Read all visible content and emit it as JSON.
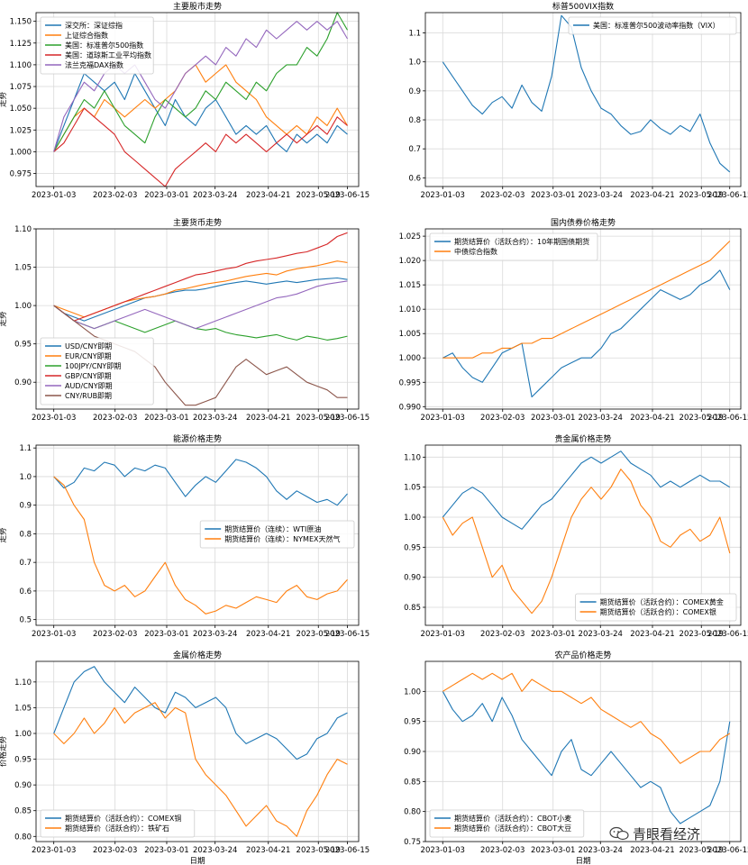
{
  "watermark": {
    "text": "青眼看经济",
    "icon": "wechat-icon"
  },
  "x_ticks": [
    "2023-01-03",
    "2023-02-03",
    "2023-03-01",
    "2023-03-24",
    "2023-04-21",
    "2023-05-19",
    "2023-06-15"
  ],
  "chart_data": [
    {
      "type": "line",
      "title": "主要股市走势",
      "ylabel": "走势",
      "xlabel": "",
      "legend_position": "top-left",
      "ylim": [
        0.96,
        1.16
      ],
      "yticks": [
        0.975,
        1.0,
        1.025,
        1.05,
        1.075,
        1.1,
        1.125,
        1.15
      ],
      "ytick_labels": [
        "0.975",
        "1.000",
        "1.025",
        "1.050",
        "1.075",
        "1.100",
        "1.125",
        "1.150"
      ],
      "grid": true,
      "series": [
        {
          "name": "深交所：深证综指",
          "color": "#1f77b4",
          "values": [
            1.0,
            1.03,
            1.06,
            1.09,
            1.08,
            1.07,
            1.08,
            1.06,
            1.09,
            1.07,
            1.05,
            1.03,
            1.06,
            1.04,
            1.03,
            1.05,
            1.06,
            1.04,
            1.02,
            1.03,
            1.02,
            1.03,
            1.01,
            1.0,
            1.02,
            1.01,
            1.02,
            1.01,
            1.03,
            1.02
          ]
        },
        {
          "name": "上证综合指数",
          "color": "#ff7f0e",
          "values": [
            1.0,
            1.02,
            1.04,
            1.05,
            1.04,
            1.06,
            1.05,
            1.04,
            1.05,
            1.06,
            1.05,
            1.06,
            1.07,
            1.09,
            1.1,
            1.08,
            1.09,
            1.1,
            1.08,
            1.07,
            1.06,
            1.04,
            1.03,
            1.02,
            1.03,
            1.02,
            1.04,
            1.03,
            1.05,
            1.03
          ]
        },
        {
          "name": "美国：标准普尔500指数",
          "color": "#2ca02c",
          "values": [
            1.0,
            1.02,
            1.04,
            1.06,
            1.05,
            1.07,
            1.05,
            1.03,
            1.02,
            1.01,
            1.04,
            1.06,
            1.05,
            1.04,
            1.05,
            1.07,
            1.06,
            1.08,
            1.07,
            1.06,
            1.08,
            1.07,
            1.09,
            1.1,
            1.1,
            1.12,
            1.11,
            1.13,
            1.16,
            1.14
          ]
        },
        {
          "name": "美国：道琼斯工业平均指数",
          "color": "#d62728",
          "values": [
            1.0,
            1.01,
            1.03,
            1.05,
            1.04,
            1.03,
            1.02,
            1.0,
            0.99,
            0.98,
            0.97,
            0.96,
            0.98,
            0.99,
            1.0,
            1.01,
            1.0,
            1.02,
            1.01,
            1.02,
            1.01,
            1.0,
            1.01,
            1.02,
            1.01,
            1.02,
            1.03,
            1.02,
            1.04,
            1.03
          ]
        },
        {
          "name": "法兰克福DAX指数",
          "color": "#9467bd",
          "values": [
            1.0,
            1.04,
            1.06,
            1.08,
            1.07,
            1.09,
            1.1,
            1.09,
            1.1,
            1.08,
            1.06,
            1.05,
            1.07,
            1.09,
            1.1,
            1.11,
            1.1,
            1.12,
            1.11,
            1.13,
            1.12,
            1.14,
            1.13,
            1.14,
            1.15,
            1.14,
            1.15,
            1.14,
            1.15,
            1.13
          ]
        }
      ]
    },
    {
      "type": "line",
      "title": "标普500VIX指数",
      "ylabel": "",
      "xlabel": "",
      "legend_position": "top-right",
      "ylim": [
        0.57,
        1.17
      ],
      "yticks": [
        0.6,
        0.7,
        0.8,
        0.9,
        1.0,
        1.1
      ],
      "ytick_labels": [
        "0.6",
        "0.7",
        "0.8",
        "0.9",
        "1.0",
        "1.1"
      ],
      "grid": true,
      "series": [
        {
          "name": "美国：标准普尔500波动率指数（VIX）",
          "color": "#1f77b4",
          "values": [
            1.0,
            0.95,
            0.9,
            0.85,
            0.82,
            0.86,
            0.88,
            0.84,
            0.92,
            0.86,
            0.83,
            0.95,
            1.16,
            1.12,
            0.98,
            0.9,
            0.84,
            0.82,
            0.78,
            0.75,
            0.76,
            0.8,
            0.77,
            0.75,
            0.78,
            0.76,
            0.82,
            0.72,
            0.65,
            0.62
          ]
        }
      ]
    },
    {
      "type": "line",
      "title": "主要货币走势",
      "ylabel": "走势",
      "xlabel": "",
      "legend_position": "lower-left",
      "ylim": [
        0.865,
        1.1
      ],
      "yticks": [
        0.9,
        0.95,
        1.0,
        1.05,
        1.1
      ],
      "ytick_labels": [
        "0.90",
        "0.95",
        "1.00",
        "1.05",
        "1.10"
      ],
      "grid": true,
      "series": [
        {
          "name": "USD/CNY即期",
          "color": "#1f77b4",
          "values": [
            1.0,
            0.99,
            0.985,
            0.98,
            0.985,
            0.99,
            0.995,
            1.0,
            1.005,
            1.01,
            1.012,
            1.015,
            1.018,
            1.02,
            1.02,
            1.022,
            1.025,
            1.028,
            1.03,
            1.032,
            1.03,
            1.028,
            1.03,
            1.032,
            1.03,
            1.032,
            1.034,
            1.035,
            1.036,
            1.034
          ]
        },
        {
          "name": "EUR/CNY即期",
          "color": "#ff7f0e",
          "values": [
            1.0,
            0.995,
            0.99,
            0.985,
            0.99,
            0.995,
            1.0,
            1.005,
            1.008,
            1.01,
            1.012,
            1.015,
            1.02,
            1.022,
            1.025,
            1.028,
            1.03,
            1.032,
            1.035,
            1.038,
            1.04,
            1.042,
            1.04,
            1.045,
            1.048,
            1.05,
            1.052,
            1.055,
            1.058,
            1.056
          ]
        },
        {
          "name": "100JPY/CNY即期",
          "color": "#2ca02c",
          "values": [
            1.0,
            0.99,
            0.98,
            0.975,
            0.97,
            0.975,
            0.98,
            0.975,
            0.97,
            0.965,
            0.97,
            0.975,
            0.98,
            0.975,
            0.97,
            0.968,
            0.97,
            0.965,
            0.962,
            0.96,
            0.958,
            0.96,
            0.962,
            0.958,
            0.955,
            0.96,
            0.958,
            0.955,
            0.957,
            0.96
          ]
        },
        {
          "name": "GBP/CNY即期",
          "color": "#d62728",
          "values": [
            1.0,
            0.99,
            0.98,
            0.985,
            0.99,
            0.995,
            1.0,
            1.005,
            1.01,
            1.015,
            1.02,
            1.025,
            1.03,
            1.035,
            1.04,
            1.042,
            1.045,
            1.048,
            1.05,
            1.055,
            1.058,
            1.06,
            1.062,
            1.065,
            1.068,
            1.07,
            1.075,
            1.08,
            1.09,
            1.095
          ]
        },
        {
          "name": "AUD/CNY即期",
          "color": "#9467bd",
          "values": [
            1.0,
            0.99,
            0.98,
            0.975,
            0.97,
            0.975,
            0.98,
            0.985,
            0.99,
            0.995,
            0.99,
            0.985,
            0.98,
            0.975,
            0.97,
            0.975,
            0.98,
            0.985,
            0.99,
            0.995,
            1.0,
            1.005,
            1.01,
            1.012,
            1.015,
            1.02,
            1.025,
            1.028,
            1.03,
            1.032
          ]
        },
        {
          "name": "CNY/RUB即期",
          "color": "#8c564b",
          "values": [
            1.0,
            0.99,
            0.98,
            0.97,
            0.96,
            0.955,
            0.95,
            0.945,
            0.94,
            0.93,
            0.92,
            0.9,
            0.885,
            0.87,
            0.87,
            0.875,
            0.88,
            0.9,
            0.92,
            0.93,
            0.92,
            0.91,
            0.915,
            0.92,
            0.91,
            0.9,
            0.895,
            0.89,
            0.88,
            0.88
          ]
        }
      ]
    },
    {
      "type": "line",
      "title": "国内债券价格走势",
      "ylabel": "",
      "xlabel": "",
      "legend_position": "top-left",
      "ylim": [
        0.9895,
        1.0265
      ],
      "yticks": [
        0.99,
        0.995,
        1.0,
        1.005,
        1.01,
        1.015,
        1.02,
        1.025
      ],
      "ytick_labels": [
        "0.990",
        "0.995",
        "1.000",
        "1.005",
        "1.010",
        "1.015",
        "1.020",
        "1.025"
      ],
      "grid": true,
      "series": [
        {
          "name": "期货结算价（活跃合约）：10年期国债期货",
          "color": "#1f77b4",
          "values": [
            1.0,
            1.001,
            0.998,
            0.996,
            0.995,
            0.998,
            1.001,
            1.002,
            1.003,
            0.992,
            0.994,
            0.996,
            0.998,
            0.999,
            1.0,
            1.0,
            1.002,
            1.005,
            1.006,
            1.008,
            1.01,
            1.012,
            1.014,
            1.013,
            1.012,
            1.013,
            1.015,
            1.016,
            1.018,
            1.014
          ]
        },
        {
          "name": "中债综合指数",
          "color": "#ff7f0e",
          "values": [
            1.0,
            1.0,
            1.0,
            1.0,
            1.001,
            1.001,
            1.002,
            1.002,
            1.003,
            1.003,
            1.004,
            1.004,
            1.005,
            1.006,
            1.007,
            1.008,
            1.009,
            1.01,
            1.011,
            1.012,
            1.013,
            1.014,
            1.015,
            1.016,
            1.017,
            1.018,
            1.019,
            1.02,
            1.022,
            1.024
          ]
        }
      ]
    },
    {
      "type": "line",
      "title": "能源价格走势",
      "ylabel": "走势",
      "xlabel": "",
      "legend_position": "center-right",
      "ylim": [
        0.48,
        1.11
      ],
      "yticks": [
        0.5,
        0.6,
        0.7,
        0.8,
        0.9,
        1.0,
        1.1
      ],
      "ytick_labels": [
        "0.5",
        "0.6",
        "0.7",
        "0.8",
        "0.9",
        "1.0",
        "1.1"
      ],
      "grid": true,
      "series": [
        {
          "name": "期货结算价（连续）：WTI原油",
          "color": "#1f77b4",
          "values": [
            1.0,
            0.96,
            0.98,
            1.03,
            1.02,
            1.05,
            1.04,
            1.0,
            1.03,
            1.02,
            1.04,
            1.03,
            0.98,
            0.93,
            0.97,
            1.0,
            0.98,
            1.02,
            1.06,
            1.05,
            1.03,
            1.0,
            0.95,
            0.92,
            0.95,
            0.93,
            0.91,
            0.92,
            0.9,
            0.94
          ]
        },
        {
          "name": "期货结算价（连续）：NYMEX天然气",
          "color": "#ff7f0e",
          "values": [
            1.0,
            0.97,
            0.9,
            0.85,
            0.7,
            0.62,
            0.6,
            0.62,
            0.58,
            0.6,
            0.65,
            0.7,
            0.62,
            0.57,
            0.55,
            0.52,
            0.53,
            0.55,
            0.54,
            0.56,
            0.58,
            0.57,
            0.56,
            0.6,
            0.62,
            0.58,
            0.57,
            0.59,
            0.6,
            0.64
          ]
        }
      ]
    },
    {
      "type": "line",
      "title": "贵金属价格走势",
      "ylabel": "",
      "xlabel": "",
      "legend_position": "lower-right",
      "ylim": [
        0.82,
        1.12
      ],
      "yticks": [
        0.85,
        0.9,
        0.95,
        1.0,
        1.05,
        1.1
      ],
      "ytick_labels": [
        "0.85",
        "0.90",
        "0.95",
        "1.00",
        "1.05",
        "1.10"
      ],
      "grid": true,
      "series": [
        {
          "name": "期货结算价（活跃合约）：COMEX黄金",
          "color": "#1f77b4",
          "values": [
            1.0,
            1.02,
            1.04,
            1.05,
            1.04,
            1.02,
            1.0,
            0.99,
            0.98,
            1.0,
            1.02,
            1.03,
            1.05,
            1.07,
            1.09,
            1.1,
            1.09,
            1.1,
            1.11,
            1.09,
            1.08,
            1.07,
            1.05,
            1.06,
            1.05,
            1.06,
            1.07,
            1.06,
            1.06,
            1.05
          ]
        },
        {
          "name": "期货结算价（活跃合约）：COMEX银",
          "color": "#ff7f0e",
          "values": [
            1.0,
            0.97,
            0.99,
            1.0,
            0.95,
            0.9,
            0.92,
            0.88,
            0.86,
            0.84,
            0.86,
            0.9,
            0.95,
            1.0,
            1.03,
            1.05,
            1.03,
            1.05,
            1.08,
            1.06,
            1.02,
            1.0,
            0.96,
            0.95,
            0.97,
            0.98,
            0.96,
            0.97,
            1.0,
            0.94
          ]
        }
      ]
    },
    {
      "type": "line",
      "title": "金属价格走势",
      "ylabel": "价格走势",
      "xlabel": "日期",
      "legend_position": "lower-left",
      "ylim": [
        0.79,
        1.14
      ],
      "yticks": [
        0.8,
        0.85,
        0.9,
        0.95,
        1.0,
        1.05,
        1.1
      ],
      "ytick_labels": [
        "0.80",
        "0.85",
        "0.90",
        "0.95",
        "1.00",
        "1.05",
        "1.10"
      ],
      "grid": true,
      "series": [
        {
          "name": "期货结算价（活跃合约）：COMEX铜",
          "color": "#1f77b4",
          "values": [
            1.0,
            1.05,
            1.1,
            1.12,
            1.13,
            1.1,
            1.08,
            1.06,
            1.09,
            1.07,
            1.05,
            1.04,
            1.08,
            1.07,
            1.05,
            1.06,
            1.07,
            1.05,
            1.0,
            0.98,
            0.99,
            1.0,
            0.99,
            0.97,
            0.95,
            0.96,
            0.99,
            1.0,
            1.03,
            1.04
          ]
        },
        {
          "name": "期货结算价（活跃合约）：铁矿石",
          "color": "#ff7f0e",
          "values": [
            1.0,
            0.98,
            1.0,
            1.03,
            1.0,
            1.02,
            1.05,
            1.02,
            1.04,
            1.05,
            1.06,
            1.03,
            1.05,
            1.04,
            0.95,
            0.92,
            0.9,
            0.88,
            0.85,
            0.82,
            0.84,
            0.86,
            0.83,
            0.82,
            0.8,
            0.85,
            0.88,
            0.92,
            0.95,
            0.94
          ]
        }
      ]
    },
    {
      "type": "line",
      "title": "农产品价格走势",
      "ylabel": "",
      "xlabel": "日期",
      "legend_position": "lower-left",
      "ylim": [
        0.75,
        1.05
      ],
      "yticks": [
        0.75,
        0.8,
        0.85,
        0.9,
        0.95,
        1.0
      ],
      "ytick_labels": [
        "0.75",
        "0.80",
        "0.85",
        "0.90",
        "0.95",
        "1.00"
      ],
      "grid": true,
      "series": [
        {
          "name": "期货结算价（活跃合约）：CBOT小麦",
          "color": "#1f77b4",
          "values": [
            1.0,
            0.97,
            0.95,
            0.96,
            0.98,
            0.95,
            0.99,
            0.96,
            0.92,
            0.9,
            0.88,
            0.86,
            0.9,
            0.92,
            0.87,
            0.86,
            0.88,
            0.9,
            0.88,
            0.86,
            0.84,
            0.85,
            0.84,
            0.8,
            0.78,
            0.79,
            0.8,
            0.81,
            0.85,
            0.95
          ]
        },
        {
          "name": "期货结算价（活跃合约）：CBOT大豆",
          "color": "#ff7f0e",
          "values": [
            1.0,
            1.01,
            1.02,
            1.03,
            1.02,
            1.03,
            1.02,
            1.03,
            1.0,
            1.02,
            1.01,
            1.0,
            1.0,
            0.99,
            0.98,
            0.99,
            0.97,
            0.96,
            0.95,
            0.94,
            0.95,
            0.93,
            0.92,
            0.9,
            0.88,
            0.89,
            0.9,
            0.9,
            0.92,
            0.93
          ]
        }
      ]
    }
  ]
}
